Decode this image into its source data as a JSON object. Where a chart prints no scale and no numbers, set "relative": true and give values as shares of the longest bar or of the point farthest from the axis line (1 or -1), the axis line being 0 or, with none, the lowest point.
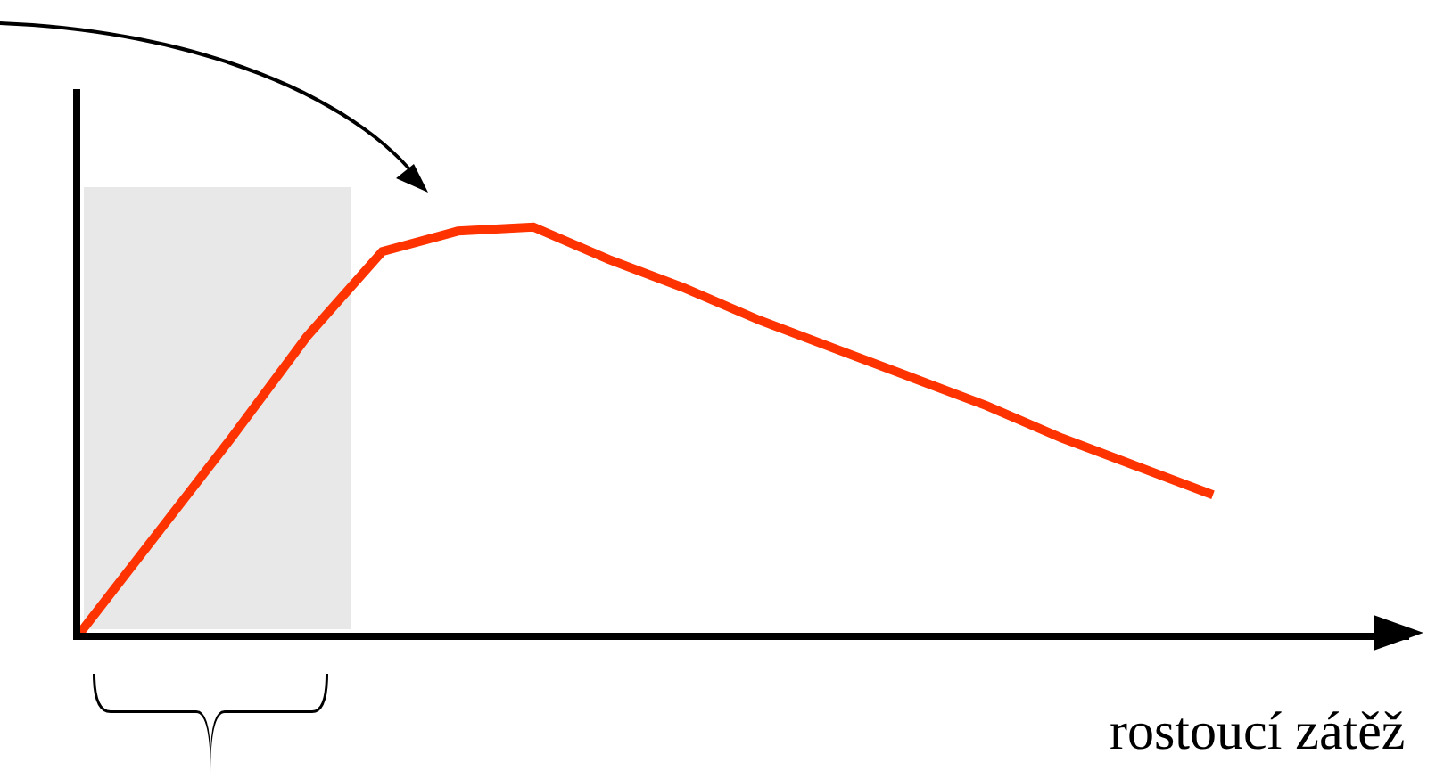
{
  "chart_data": {
    "type": "line",
    "relative": true,
    "xlabel": "rostoucí zátěž",
    "categories": [
      null,
      null,
      null,
      null,
      null,
      null,
      null,
      null,
      null,
      null,
      null,
      null,
      null,
      null,
      null,
      null
    ],
    "series": [
      {
        "color": "#ff3300",
        "values": [
          0,
          0.24,
          0.48,
          0.73,
          0.94,
          0.99,
          1,
          0.92,
          0.85,
          0.77,
          0.7,
          0.63,
          0.56,
          0.48,
          0.41,
          0.34
        ]
      }
    ],
    "grid": false,
    "marker": "none",
    "line_style": "solid"
  }
}
